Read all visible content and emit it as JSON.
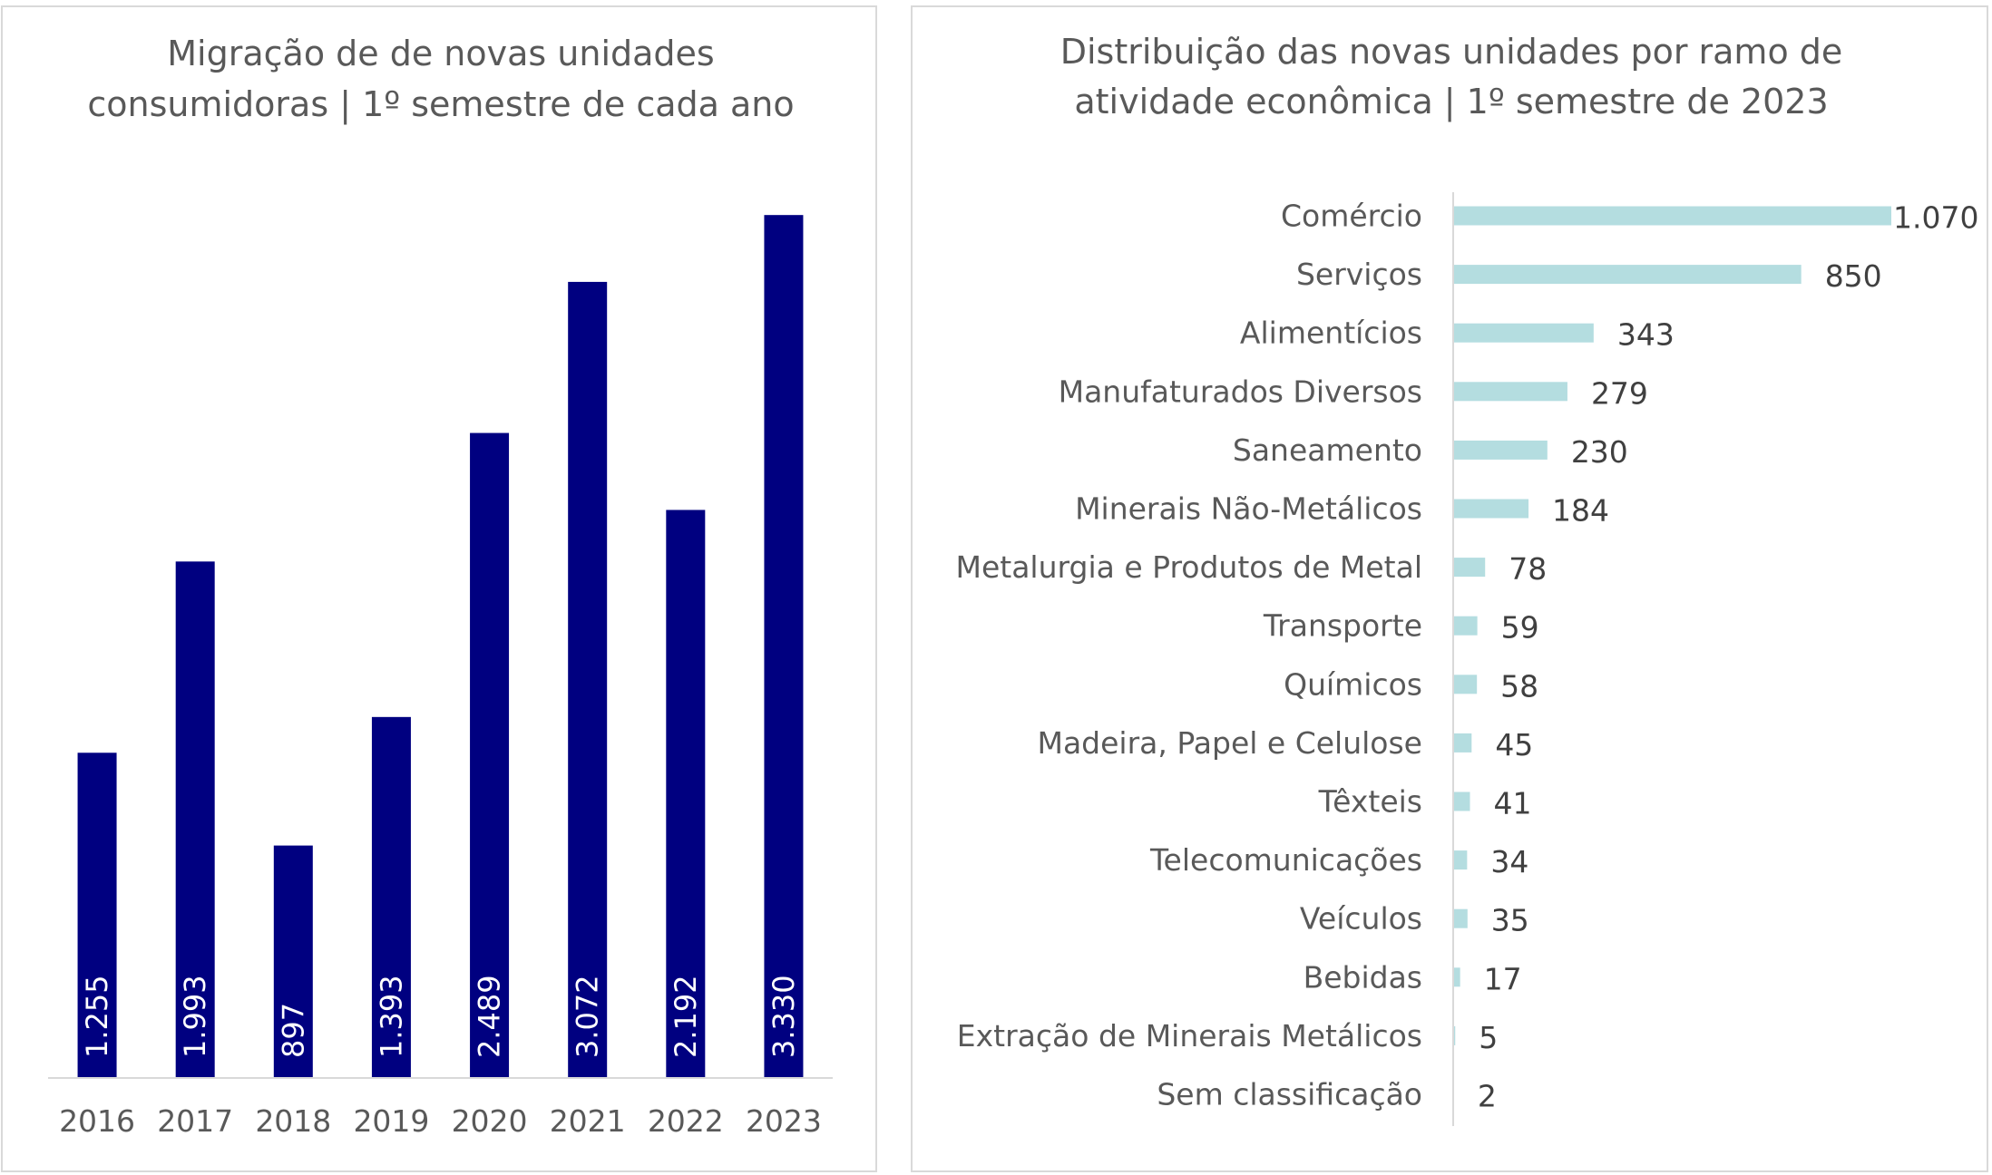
{
  "chart_data": [
    {
      "type": "bar",
      "title": "Migração de de novas unidades consumidoras | 1º semestre de cada ano",
      "title_lines": [
        "Migração de de novas unidades",
        "consumidoras | 1º semestre de cada ano"
      ],
      "categories": [
        "2016",
        "2017",
        "2018",
        "2019",
        "2020",
        "2021",
        "2022",
        "2023"
      ],
      "values": [
        1255,
        1993,
        897,
        1393,
        2489,
        3072,
        2192,
        3330
      ],
      "value_labels": [
        "1.255",
        "1.993",
        "897",
        "1.393",
        "2.489",
        "3.072",
        "2.192",
        "3.330"
      ],
      "xlabel": "",
      "ylabel": "",
      "ylim": [
        0,
        3600
      ],
      "grid": false,
      "color": "#000080"
    },
    {
      "type": "bar",
      "orientation": "horizontal",
      "title": "Distribuição das novas unidades por ramo de atividade econômica | 1º semestre de 2023",
      "title_lines": [
        "Distribuição das novas unidades por ramo de",
        "atividade econômica | 1º semestre de 2023"
      ],
      "categories": [
        "Comércio",
        "Serviços",
        "Alimentícios",
        "Manufaturados Diversos",
        "Saneamento",
        "Minerais Não-Metálicos",
        "Metalurgia e Produtos de Metal",
        "Transporte",
        "Químicos",
        "Madeira, Papel e Celulose",
        "Têxteis",
        "Telecomunicações",
        "Veículos",
        "Bebidas",
        "Extração de Minerais Metálicos",
        "Sem classificação"
      ],
      "values": [
        1070,
        850,
        343,
        279,
        230,
        184,
        78,
        59,
        58,
        45,
        41,
        34,
        35,
        17,
        5,
        2
      ],
      "value_labels": [
        "1.070",
        "850",
        "343",
        "279",
        "230",
        "184",
        "78",
        "59",
        "58",
        "45",
        "41",
        "34",
        "35",
        "17",
        "5",
        "2"
      ],
      "xlabel": "",
      "ylabel": "",
      "xlim": [
        0,
        1070
      ],
      "grid": false,
      "color": "#b4dde0"
    }
  ]
}
